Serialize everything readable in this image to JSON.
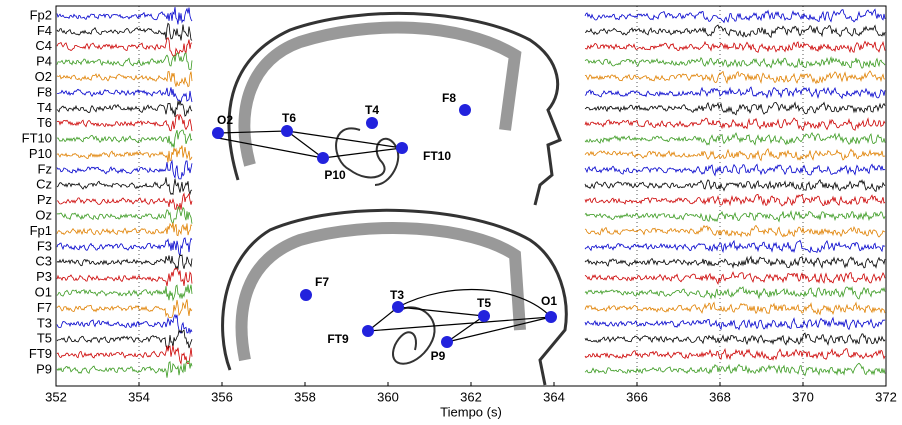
{
  "chart_data": {
    "type": "line",
    "xlabel": "Tiempo (s)",
    "xlim": [
      352,
      372
    ],
    "xticks": [
      352,
      354,
      356,
      358,
      360,
      362,
      364,
      366,
      368,
      370,
      372
    ],
    "grid": true,
    "series": [
      {
        "name": "Fp2",
        "color": "#0000cc"
      },
      {
        "name": "F4",
        "color": "#000000"
      },
      {
        "name": "C4",
        "color": "#cc0000"
      },
      {
        "name": "P4",
        "color": "#3a9a20"
      },
      {
        "name": "O2",
        "color": "#e08000"
      },
      {
        "name": "F8",
        "color": "#0000cc"
      },
      {
        "name": "T4",
        "color": "#000000"
      },
      {
        "name": "T6",
        "color": "#cc0000"
      },
      {
        "name": "FT10",
        "color": "#3a9a20"
      },
      {
        "name": "P10",
        "color": "#e08000"
      },
      {
        "name": "Fz",
        "color": "#0000cc"
      },
      {
        "name": "Cz",
        "color": "#000000"
      },
      {
        "name": "Pz",
        "color": "#cc0000"
      },
      {
        "name": "Oz",
        "color": "#3a9a20"
      },
      {
        "name": "Fp1",
        "color": "#e08000"
      },
      {
        "name": "F3",
        "color": "#0000cc"
      },
      {
        "name": "C3",
        "color": "#000000"
      },
      {
        "name": "P3",
        "color": "#cc0000"
      },
      {
        "name": "O1",
        "color": "#3a9a20"
      },
      {
        "name": "F7",
        "color": "#e08000"
      },
      {
        "name": "T3",
        "color": "#0000cc"
      },
      {
        "name": "T5",
        "color": "#000000"
      },
      {
        "name": "FT9",
        "color": "#cc0000"
      },
      {
        "name": "P9",
        "color": "#3a9a20"
      }
    ],
    "diagrams": [
      {
        "nodes": [
          "O2",
          "T6",
          "T4",
          "F8",
          "FT10",
          "P10"
        ]
      },
      {
        "nodes": [
          "F7",
          "T3",
          "T5",
          "O1",
          "FT9",
          "P9"
        ]
      }
    ]
  }
}
